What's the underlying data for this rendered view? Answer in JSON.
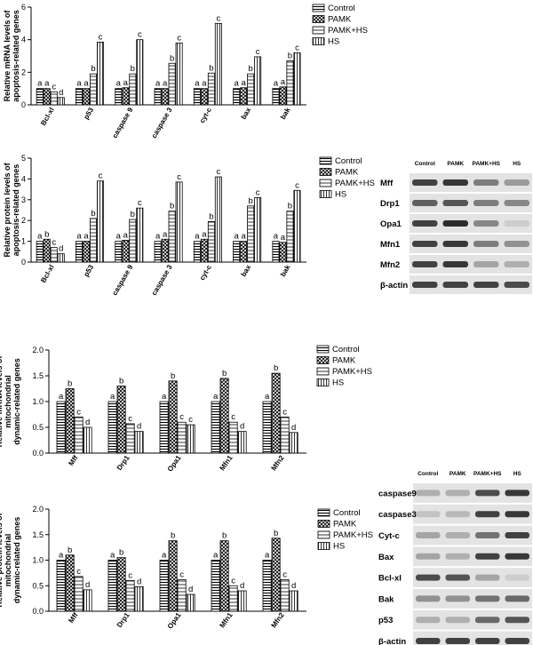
{
  "colors": {
    "bar_stroke": "#000000",
    "fill": "#ffffff",
    "blot_band": "#2b2b2b",
    "blot_bg": "#d9d9d9"
  },
  "legend": [
    "Control",
    "PAMK",
    "PAMK+HS",
    "HS"
  ],
  "chart_data": [
    {
      "id": "mrna_apoptosis",
      "type": "bar",
      "ylabel": [
        "Relative mRNA levels of",
        "apoptosis-related genes"
      ],
      "ylim": [
        0,
        6
      ],
      "yticks": [
        0,
        2,
        4,
        6
      ],
      "categories": [
        "Bcl-xl",
        "p53",
        "caspase 9",
        "caspase 3",
        "cyt-c",
        "bax",
        "bak"
      ],
      "series": [
        {
          "name": "Control",
          "values": [
            1,
            1,
            1,
            1,
            1,
            1,
            1
          ]
        },
        {
          "name": "PAMK",
          "values": [
            1.0,
            1.0,
            1.05,
            1.0,
            1.0,
            1.05,
            1.1
          ]
        },
        {
          "name": "PAMK+HS",
          "values": [
            0.8,
            1.9,
            1.9,
            2.55,
            1.95,
            1.9,
            2.7
          ]
        },
        {
          "name": "HS",
          "values": [
            0.45,
            3.85,
            4.0,
            3.8,
            5.0,
            2.95,
            3.2
          ]
        }
      ],
      "letters": [
        [
          "a",
          "a",
          "c",
          "d"
        ],
        [
          "a",
          "a",
          "b",
          "c"
        ],
        [
          "a",
          "a",
          "b",
          "c"
        ],
        [
          "a",
          "a",
          "b",
          "c"
        ],
        [
          "a",
          "a",
          "b",
          "c"
        ],
        [
          "a",
          "a",
          "b",
          "c"
        ],
        [
          "a",
          "a",
          "b",
          "c"
        ]
      ]
    },
    {
      "id": "protein_apoptosis",
      "type": "bar",
      "ylabel": [
        "Relative protein levels of",
        "apoptosis-related genes"
      ],
      "ylim": [
        0,
        5
      ],
      "yticks": [
        0,
        1,
        2,
        3,
        4,
        5
      ],
      "categories": [
        "Bcl-xl",
        "p53",
        "caspase 9",
        "caspase 3",
        "cyt-c",
        "bax",
        "bak"
      ],
      "series": [
        {
          "name": "Control",
          "values": [
            1,
            1,
            1,
            1,
            1,
            1,
            1
          ]
        },
        {
          "name": "PAMK",
          "values": [
            1.1,
            1.0,
            1.05,
            1.1,
            1.1,
            1.0,
            0.95
          ]
        },
        {
          "name": "PAMK+HS",
          "values": [
            0.7,
            2.1,
            2.05,
            2.45,
            1.95,
            2.7,
            2.45
          ]
        },
        {
          "name": "HS",
          "values": [
            0.4,
            3.9,
            2.6,
            3.85,
            4.1,
            3.1,
            3.45
          ]
        }
      ],
      "letters": [
        [
          "a",
          "b",
          "c",
          "d"
        ],
        [
          "a",
          "a",
          "b",
          "c"
        ],
        [
          "a",
          "a",
          "b",
          "c"
        ],
        [
          "a",
          "a",
          "b",
          "c"
        ],
        [
          "a",
          "a",
          "b",
          "c"
        ],
        [
          "a",
          "a",
          "b",
          "c"
        ],
        [
          "a",
          "a",
          "b",
          "c"
        ]
      ]
    },
    {
      "id": "mrna_mito",
      "type": "bar",
      "ylabel": [
        "Relative mRNA levels of",
        "mitochondrial",
        "dynamic-related genes"
      ],
      "ylim": [
        0,
        2.0
      ],
      "yticks": [
        0.0,
        0.5,
        1.0,
        1.5,
        2.0
      ],
      "categories": [
        "Mff",
        "Drp1",
        "Opa1",
        "Mfn1",
        "Mfn2"
      ],
      "series": [
        {
          "name": "Control",
          "values": [
            1,
            1,
            1,
            1,
            1
          ]
        },
        {
          "name": "PAMK",
          "values": [
            1.25,
            1.3,
            1.4,
            1.45,
            1.55
          ]
        },
        {
          "name": "PAMK+HS",
          "values": [
            0.7,
            0.57,
            0.6,
            0.6,
            0.7
          ]
        },
        {
          "name": "HS",
          "values": [
            0.5,
            0.42,
            0.55,
            0.42,
            0.4
          ]
        }
      ],
      "letters": [
        [
          "a",
          "b",
          "c",
          "d"
        ],
        [
          "a",
          "b",
          "c",
          "d"
        ],
        [
          "a",
          "b",
          "c",
          "c"
        ],
        [
          "a",
          "b",
          "c",
          "d"
        ],
        [
          "a",
          "b",
          "c",
          "d"
        ]
      ]
    },
    {
      "id": "protein_mito",
      "type": "bar",
      "ylabel": [
        "Relative protein levels of",
        "mitochondrial",
        "dynamic-related genes"
      ],
      "ylim": [
        0,
        2.0
      ],
      "yticks": [
        0.0,
        0.5,
        1.0,
        1.5,
        2.0
      ],
      "categories": [
        "Mff",
        "Drp1",
        "Opa1",
        "Mfn1",
        "Mfn2"
      ],
      "series": [
        {
          "name": "Control",
          "values": [
            1,
            1,
            1,
            1,
            1
          ]
        },
        {
          "name": "PAMK",
          "values": [
            1.1,
            1.05,
            1.38,
            1.38,
            1.43
          ]
        },
        {
          "name": "PAMK+HS",
          "values": [
            0.68,
            0.6,
            0.62,
            0.5,
            0.62
          ]
        },
        {
          "name": "HS",
          "values": [
            0.42,
            0.48,
            0.33,
            0.4,
            0.4
          ]
        }
      ],
      "letters": [
        [
          "a",
          "b",
          "c",
          "d"
        ],
        [
          "a",
          "b",
          "c",
          "d"
        ],
        [
          "a",
          "b",
          "c",
          "d"
        ],
        [
          "a",
          "b",
          "c",
          "d"
        ],
        [
          "a",
          "b",
          "c",
          "d"
        ]
      ]
    }
  ],
  "blots": [
    {
      "id": "blot_mito",
      "columns": [
        "Control",
        "PAMK",
        "PAMK+HS",
        "HS"
      ],
      "rows": [
        {
          "label": "Mff",
          "intensity": [
            0.85,
            0.9,
            0.55,
            0.4
          ]
        },
        {
          "label": "Drp1",
          "intensity": [
            0.7,
            0.75,
            0.55,
            0.5
          ]
        },
        {
          "label": "Opa1",
          "intensity": [
            0.85,
            0.95,
            0.5,
            0.15
          ]
        },
        {
          "label": "Mfn1",
          "intensity": [
            0.85,
            0.9,
            0.55,
            0.45
          ]
        },
        {
          "label": "Mfn2",
          "intensity": [
            0.85,
            0.9,
            0.35,
            0.3
          ]
        },
        {
          "label": "β-actin",
          "intensity": [
            0.85,
            0.85,
            0.85,
            0.8
          ]
        }
      ]
    },
    {
      "id": "blot_apoptosis",
      "columns": [
        "Control",
        "PAMK",
        "PAMK+HS",
        "HS"
      ],
      "rows": [
        {
          "label": "caspase9",
          "intensity": [
            0.3,
            0.3,
            0.8,
            0.9
          ]
        },
        {
          "label": "caspase3",
          "intensity": [
            0.2,
            0.25,
            0.85,
            0.9
          ]
        },
        {
          "label": "Cyt-c",
          "intensity": [
            0.35,
            0.3,
            0.6,
            0.85
          ]
        },
        {
          "label": "Bax",
          "intensity": [
            0.35,
            0.3,
            0.85,
            0.9
          ]
        },
        {
          "label": "Bcl-xl",
          "intensity": [
            0.8,
            0.75,
            0.35,
            0.15
          ]
        },
        {
          "label": "Bak",
          "intensity": [
            0.45,
            0.45,
            0.6,
            0.65
          ]
        },
        {
          "label": "p53",
          "intensity": [
            0.3,
            0.3,
            0.65,
            0.75
          ]
        },
        {
          "label": "β-actin",
          "intensity": [
            0.85,
            0.85,
            0.85,
            0.85
          ]
        }
      ]
    }
  ]
}
